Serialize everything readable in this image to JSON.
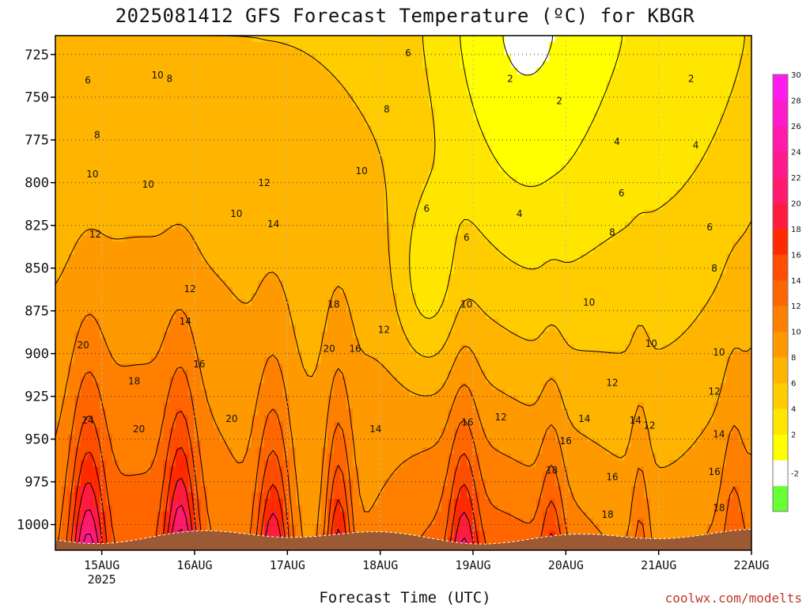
{
  "title": "2025081412 GFS Forecast Temperature (ºC) for KBGR",
  "xlabel": "Forecast Time (UTC)",
  "credit": "coolwx.com/modelts",
  "chart_data": {
    "type": "heatmap",
    "title": "2025081412 GFS Forecast Temperature (ºC) for KBGR",
    "xlabel": "Forecast Time (UTC)",
    "ylabel": "",
    "units": "ºC",
    "x_ticks": [
      "15AUG",
      "16AUG",
      "17AUG",
      "18AUG",
      "19AUG",
      "20AUG",
      "21AUG",
      "22AUG"
    ],
    "x_tick_sublabel": "2025",
    "x_range_days": [
      14.5,
      22
    ],
    "y_ticks": [
      725,
      750,
      775,
      800,
      825,
      850,
      875,
      900,
      925,
      950,
      975,
      1000
    ],
    "y_range_hpa": [
      1015,
      714
    ],
    "colorbar_ticks": [
      30,
      28,
      26,
      24,
      22,
      20,
      18,
      16,
      14,
      12,
      10,
      8,
      6,
      4,
      2,
      -2
    ],
    "colorbar_bins": [
      {
        "min": -4,
        "max": 0,
        "color": "#66ff33"
      },
      {
        "min": 0,
        "max": 2,
        "color": "#ffffff"
      },
      {
        "min": 2,
        "max": 4,
        "color": "#ffff00"
      },
      {
        "min": 4,
        "max": 6,
        "color": "#ffe600"
      },
      {
        "min": 6,
        "max": 8,
        "color": "#ffcc00"
      },
      {
        "min": 8,
        "max": 10,
        "color": "#ffb400"
      },
      {
        "min": 10,
        "max": 12,
        "color": "#ff9900"
      },
      {
        "min": 12,
        "max": 14,
        "color": "#ff8000"
      },
      {
        "min": 14,
        "max": 16,
        "color": "#ff6600"
      },
      {
        "min": 16,
        "max": 18,
        "color": "#ff4d00"
      },
      {
        "min": 18,
        "max": 20,
        "color": "#ff2a00"
      },
      {
        "min": 20,
        "max": 22,
        "color": "#ff1a40"
      },
      {
        "min": 22,
        "max": 24,
        "color": "#ff1a6e"
      },
      {
        "min": 24,
        "max": 26,
        "color": "#ff1a8c"
      },
      {
        "min": 26,
        "max": 28,
        "color": "#ff1aaa"
      },
      {
        "min": 28,
        "max": 30,
        "color": "#ff1acc"
      },
      {
        "min": 30,
        "max": 32,
        "color": "#ff1aee"
      }
    ],
    "contour_interval": 2,
    "contour_labels": [
      {
        "day": 14.85,
        "p": 742,
        "v": 6
      },
      {
        "day": 15.6,
        "p": 739,
        "v": 10
      },
      {
        "day": 15.73,
        "p": 741,
        "v": 8
      },
      {
        "day": 14.95,
        "p": 774,
        "v": 8
      },
      {
        "day": 14.9,
        "p": 797,
        "v": 10
      },
      {
        "day": 15.5,
        "p": 803,
        "v": 10
      },
      {
        "day": 14.93,
        "p": 832,
        "v": 12
      },
      {
        "day": 16.45,
        "p": 820,
        "v": 10
      },
      {
        "day": 16.75,
        "p": 802,
        "v": 12
      },
      {
        "day": 16.85,
        "p": 826,
        "v": 14
      },
      {
        "day": 15.95,
        "p": 864,
        "v": 12
      },
      {
        "day": 15.9,
        "p": 883,
        "v": 14
      },
      {
        "day": 14.8,
        "p": 897,
        "v": 20
      },
      {
        "day": 15.35,
        "p": 918,
        "v": 18
      },
      {
        "day": 16.05,
        "p": 908,
        "v": 16
      },
      {
        "day": 14.85,
        "p": 941,
        "v": 24
      },
      {
        "day": 15.4,
        "p": 946,
        "v": 20
      },
      {
        "day": 16.4,
        "p": 940,
        "v": 20
      },
      {
        "day": 17.5,
        "p": 873,
        "v": 18
      },
      {
        "day": 17.45,
        "p": 899,
        "v": 20
      },
      {
        "day": 17.73,
        "p": 899,
        "v": 16
      },
      {
        "day": 17.8,
        "p": 795,
        "v": 10
      },
      {
        "day": 18.04,
        "p": 888,
        "v": 12
      },
      {
        "day": 17.95,
        "p": 946,
        "v": 14
      },
      {
        "day": 18.07,
        "p": 759,
        "v": 8
      },
      {
        "day": 18.3,
        "p": 726,
        "v": 6
      },
      {
        "day": 18.5,
        "p": 817,
        "v": 6
      },
      {
        "day": 18.94,
        "p": 942,
        "v": 16
      },
      {
        "day": 18.93,
        "p": 834,
        "v": 6
      },
      {
        "day": 18.93,
        "p": 873,
        "v": 10
      },
      {
        "day": 19.4,
        "p": 741,
        "v": 2
      },
      {
        "day": 19.5,
        "p": 820,
        "v": 4
      },
      {
        "day": 19.3,
        "p": 939,
        "v": 12
      },
      {
        "day": 19.93,
        "p": 754,
        "v": 2
      },
      {
        "day": 20.0,
        "p": 953,
        "v": 16
      },
      {
        "day": 19.85,
        "p": 970,
        "v": 18
      },
      {
        "day": 20.2,
        "p": 940,
        "v": 14
      },
      {
        "day": 20.25,
        "p": 872,
        "v": 10
      },
      {
        "day": 20.5,
        "p": 919,
        "v": 12
      },
      {
        "day": 20.55,
        "p": 778,
        "v": 4
      },
      {
        "day": 20.6,
        "p": 808,
        "v": 6
      },
      {
        "day": 20.5,
        "p": 831,
        "v": 8
      },
      {
        "day": 20.5,
        "p": 974,
        "v": 16
      },
      {
        "day": 20.45,
        "p": 996,
        "v": 18
      },
      {
        "day": 20.75,
        "p": 941,
        "v": 14
      },
      {
        "day": 20.9,
        "p": 944,
        "v": 12
      },
      {
        "day": 20.92,
        "p": 896,
        "v": 10
      },
      {
        "day": 21.35,
        "p": 741,
        "v": 2
      },
      {
        "day": 21.4,
        "p": 780,
        "v": 4
      },
      {
        "day": 21.55,
        "p": 828,
        "v": 6
      },
      {
        "day": 21.6,
        "p": 852,
        "v": 8
      },
      {
        "day": 21.65,
        "p": 901,
        "v": 10
      },
      {
        "day": 21.6,
        "p": 924,
        "v": 12
      },
      {
        "day": 21.65,
        "p": 949,
        "v": 14
      },
      {
        "day": 21.6,
        "p": 971,
        "v": 16
      },
      {
        "day": 21.65,
        "p": 992,
        "v": 18
      }
    ]
  }
}
